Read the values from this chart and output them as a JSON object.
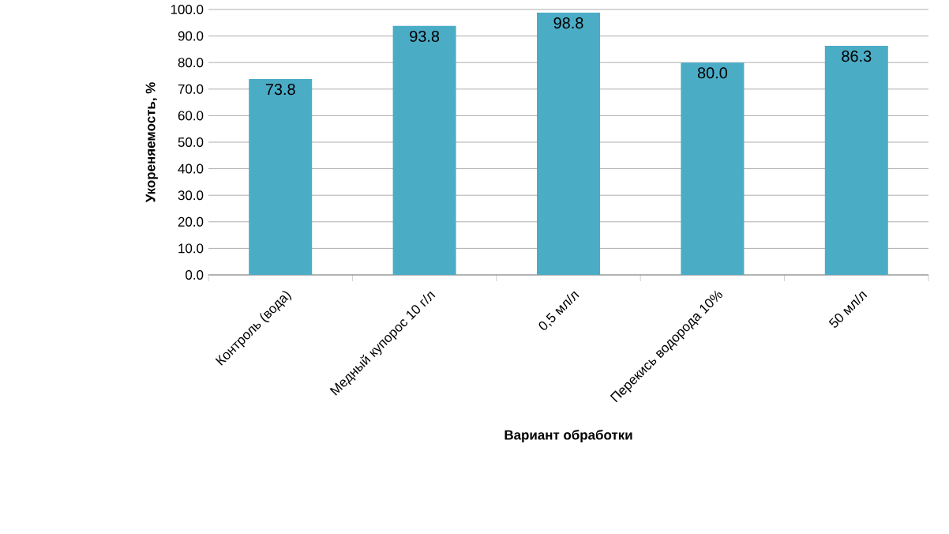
{
  "chart_data": {
    "type": "bar",
    "xlabel": "Вариант обработки",
    "ylabel": "Укореняемость, %",
    "categories": [
      "Контроль (вода)",
      "Медный купорос 10 г/л",
      "0,5 мл/л",
      "Перекись водорода 10%",
      "50 мл/л"
    ],
    "values": [
      73.8,
      93.8,
      98.8,
      80.0,
      86.3
    ],
    "value_labels": [
      "73.8",
      "93.8",
      "98.8",
      "80.0",
      "86.3"
    ],
    "color": "#4bacc6",
    "ylim": [
      0,
      100
    ],
    "yticks": [
      {
        "value": 0,
        "label": "0.0"
      },
      {
        "value": 10,
        "label": "10.0"
      },
      {
        "value": 20,
        "label": "20.0"
      },
      {
        "value": 30,
        "label": "30.0"
      },
      {
        "value": 40,
        "label": "40.0"
      },
      {
        "value": 50,
        "label": "50.0"
      },
      {
        "value": 60,
        "label": "60.0"
      },
      {
        "value": 70,
        "label": "70.0"
      },
      {
        "value": 80,
        "label": "80.0"
      },
      {
        "value": 90,
        "label": "90.0"
      },
      {
        "value": 100,
        "label": "100.0"
      }
    ],
    "grid": "y"
  }
}
